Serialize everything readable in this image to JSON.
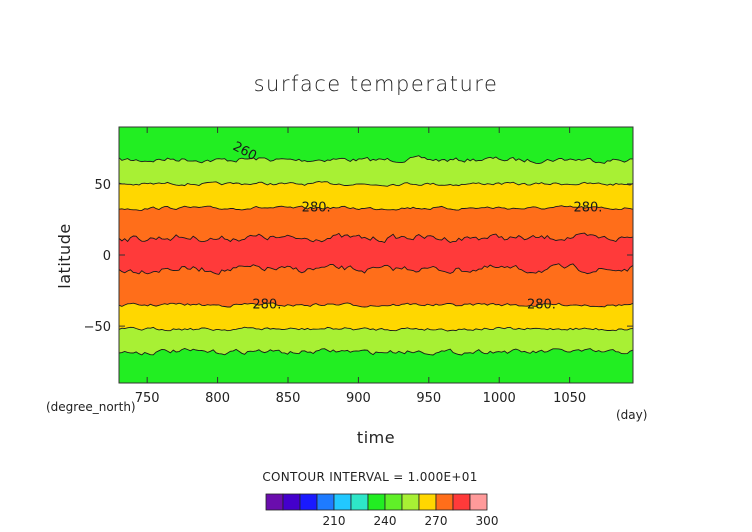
{
  "chart_data": {
    "type": "heatmap",
    "title": "surface temperature",
    "xlabel": "time",
    "ylabel": "latitude",
    "x_unit": "(day)",
    "y_unit": "(degree_north)",
    "xlim": [
      730,
      1095
    ],
    "ylim": [
      -90,
      90
    ],
    "x_ticks": [
      750,
      800,
      850,
      900,
      950,
      1000,
      1050
    ],
    "y_ticks": [
      50,
      0,
      -50
    ],
    "y_tick_labels": [
      "50",
      "0",
      "−50"
    ],
    "contour_interval_text": "CONTOUR INTERVAL = 1.000E+01",
    "contour_levels": [
      250,
      260,
      270,
      280,
      290
    ],
    "bands": [
      {
        "from_lat": 90,
        "to_lat": 67,
        "label": "<260",
        "color": "#22ee22"
      },
      {
        "from_lat": 67,
        "to_lat": 50,
        "label": "260-270",
        "color": "#a8f034"
      },
      {
        "from_lat": 50,
        "to_lat": 33,
        "label": "270-280",
        "color": "#ffd700"
      },
      {
        "from_lat": 33,
        "to_lat": 12,
        "label": "280-290",
        "color": "#ff6e1a"
      },
      {
        "from_lat": 12,
        "to_lat": -10,
        "label": ">290",
        "color": "#ff3a3a"
      },
      {
        "from_lat": -10,
        "to_lat": -35,
        "label": "280-290",
        "color": "#ff6e1a"
      },
      {
        "from_lat": -35,
        "to_lat": -52,
        "label": "270-280",
        "color": "#ffd700"
      },
      {
        "from_lat": -52,
        "to_lat": -68,
        "label": "260-270",
        "color": "#a8f034"
      },
      {
        "from_lat": -68,
        "to_lat": -90,
        "label": "<260",
        "color": "#22ee22"
      }
    ],
    "contour_lines_lat": [
      67,
      50,
      33,
      12,
      -10,
      -35,
      -52,
      -68
    ],
    "contour_labels": [
      {
        "text": "260",
        "day": 818,
        "lat": 74
      },
      {
        "text": "280.",
        "day": 870,
        "lat": 34
      },
      {
        "text": "280.",
        "day": 1063,
        "lat": 34
      },
      {
        "text": "280.",
        "day": 835,
        "lat": -34
      },
      {
        "text": "280.",
        "day": 1030,
        "lat": -34
      }
    ],
    "colorbar": {
      "colors": [
        "#6a0dad",
        "#4400cc",
        "#1a1aff",
        "#1e7bff",
        "#22c8ff",
        "#2ee6c8",
        "#22ee22",
        "#60f028",
        "#a8f034",
        "#ffd700",
        "#ff6e1a",
        "#ff3a3a",
        "#ff9a9a"
      ],
      "tick_labels": [
        "210",
        "240",
        "270",
        "300"
      ],
      "tick_after_box": [
        4,
        7,
        10,
        13
      ]
    }
  }
}
